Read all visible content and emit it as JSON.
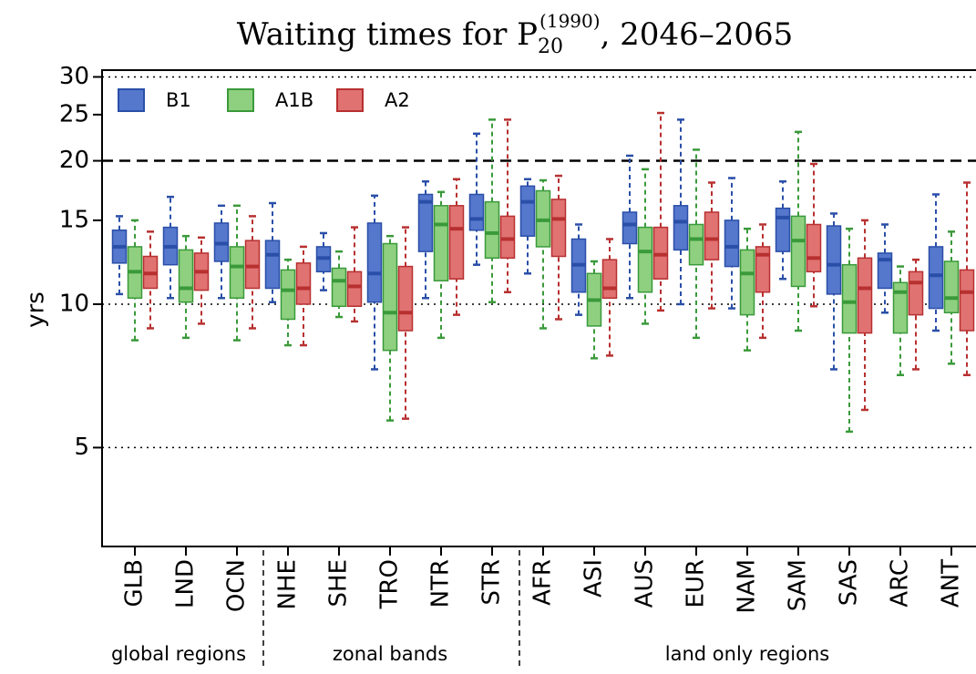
{
  "chart_data": {
    "type": "box",
    "title": {
      "main": "Waiting times for P",
      "subscript": "20",
      "superscript": "(1990)",
      "rest": ", 2046–2065"
    },
    "y_label": "yrs",
    "log_y": true,
    "ylim": [
      3.1,
      31
    ],
    "yticks": [
      5,
      10,
      15,
      20,
      25,
      30
    ],
    "reference_lines": [
      {
        "value": 30,
        "style": "dotted"
      },
      {
        "value": 20,
        "style": "dashed"
      },
      {
        "value": 10,
        "style": "dotted"
      },
      {
        "value": 5,
        "style": "dotted"
      }
    ],
    "legend": "top-left",
    "categories": [
      "GLB",
      "LND",
      "OCN",
      "NHE",
      "SHE",
      "TRO",
      "NTR",
      "STR",
      "AFR",
      "ASI",
      "AUS",
      "EUR",
      "NAM",
      "SAM",
      "SAS",
      "ARC",
      "ANT"
    ],
    "group_labels": [
      "global regions",
      "zonal bands",
      "land only regions"
    ],
    "series": [
      {
        "name": "B1",
        "color": "#5577cc",
        "edge": "#2a4fa8",
        "min": [
          10.5,
          10.3,
          10.3,
          10.1,
          10.7,
          7.3,
          10.3,
          12.1,
          11.6,
          9.5,
          10.3,
          10.0,
          9.8,
          11.3,
          7.3,
          9.6,
          8.8
        ],
        "q1": [
          12.2,
          12.1,
          12.3,
          10.8,
          11.7,
          10.1,
          12.9,
          14.3,
          13.9,
          10.6,
          13.4,
          13.0,
          12.0,
          12.9,
          10.5,
          10.8,
          9.8
        ],
        "median": [
          13.2,
          13.2,
          13.4,
          12.7,
          12.5,
          11.6,
          16.4,
          15.1,
          16.4,
          12.1,
          14.7,
          14.9,
          13.2,
          15.2,
          12.1,
          12.4,
          11.5
        ],
        "q3": [
          14.3,
          14.5,
          14.8,
          13.6,
          13.2,
          14.8,
          17.0,
          17.0,
          17.7,
          13.7,
          15.6,
          16.1,
          15.0,
          15.9,
          14.6,
          12.8,
          13.2
        ],
        "max": [
          15.3,
          16.8,
          16.1,
          16.3,
          14.1,
          16.9,
          18.1,
          22.8,
          18.3,
          14.7,
          20.5,
          24.4,
          18.4,
          18.1,
          15.5,
          14.7,
          17.0
        ]
      },
      {
        "name": "A1B",
        "color": "#8fd080",
        "edge": "#3a9a3a",
        "min": [
          8.4,
          8.5,
          8.4,
          8.2,
          9.4,
          5.7,
          8.5,
          10.1,
          8.9,
          7.7,
          9.1,
          8.5,
          8.0,
          8.8,
          5.4,
          7.1,
          7.5
        ],
        "q1": [
          10.3,
          10.1,
          10.3,
          9.3,
          9.9,
          8.0,
          11.2,
          12.5,
          13.2,
          9.0,
          10.6,
          12.1,
          9.5,
          10.9,
          8.7,
          8.7,
          9.6
        ],
        "median": [
          11.7,
          10.8,
          12.0,
          10.7,
          11.2,
          9.6,
          14.7,
          14.1,
          15.0,
          10.2,
          12.9,
          13.7,
          11.6,
          13.6,
          10.1,
          10.6,
          10.3
        ],
        "q3": [
          13.2,
          13.0,
          13.2,
          11.8,
          11.9,
          13.4,
          16.1,
          16.4,
          17.3,
          11.6,
          14.5,
          14.7,
          13.0,
          15.3,
          12.1,
          11.1,
          12.3
        ],
        "max": [
          15.0,
          13.9,
          16.1,
          12.4,
          12.9,
          13.9,
          17.2,
          24.4,
          18.2,
          12.3,
          19.2,
          21.1,
          14.4,
          23.0,
          14.4,
          12.0,
          14.2
        ]
      },
      {
        "name": "A2",
        "color": "#e07272",
        "edge": "#b83030",
        "min": [
          8.9,
          9.1,
          8.9,
          8.2,
          9.2,
          5.75,
          9.5,
          10.6,
          9.3,
          7.8,
          9.7,
          9.8,
          8.5,
          9.9,
          6.0,
          7.3,
          7.1
        ],
        "q1": [
          10.8,
          10.7,
          10.8,
          10.0,
          9.9,
          8.8,
          11.3,
          12.5,
          12.6,
          10.3,
          11.3,
          12.4,
          10.6,
          11.7,
          8.7,
          9.5,
          8.8
        ],
        "median": [
          11.6,
          11.7,
          12.0,
          10.8,
          10.9,
          9.6,
          14.4,
          13.7,
          15.1,
          10.8,
          12.7,
          13.7,
          12.7,
          12.5,
          10.8,
          11.1,
          10.6
        ],
        "q3": [
          12.6,
          12.8,
          13.6,
          12.2,
          11.7,
          12.0,
          16.1,
          15.3,
          16.6,
          12.4,
          14.5,
          15.6,
          13.2,
          14.7,
          12.5,
          11.7,
          11.8
        ],
        "max": [
          14.2,
          13.8,
          15.3,
          13.2,
          14.5,
          14.5,
          18.3,
          24.4,
          18.6,
          13.7,
          25.2,
          18.0,
          14.7,
          19.7,
          15.0,
          12.4,
          18.0
        ]
      }
    ]
  }
}
